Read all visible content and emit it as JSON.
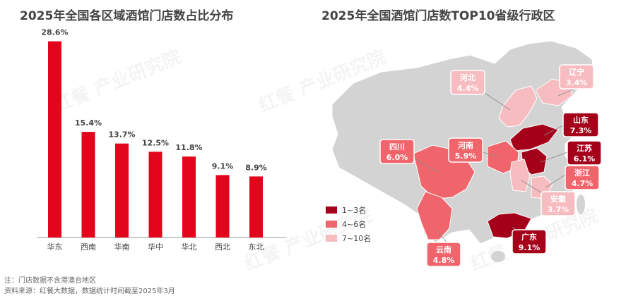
{
  "watermark": "红餐 产业研究院",
  "notes": {
    "line1": "注：门店数据不含港澳台地区",
    "line2": "资料来源：红餐大数据，数据统计时间截至2025年3月"
  },
  "colors": {
    "bar": "#e3051b",
    "dark": "#a5001a",
    "mid": "#f0656b",
    "light": "#f7bcc0",
    "map_base": "#d3d3d3"
  },
  "chart_data": [
    {
      "type": "bar",
      "title": "2025年全国各区域酒馆门店数占比分布",
      "categories": [
        "华东",
        "西南",
        "华南",
        "华中",
        "华北",
        "西北",
        "东北"
      ],
      "values": [
        28.6,
        15.4,
        13.7,
        12.5,
        11.8,
        9.1,
        8.9
      ],
      "value_labels": [
        "28.6%",
        "15.4%",
        "13.7%",
        "12.5%",
        "11.8%",
        "9.1%",
        "8.9%"
      ],
      "ylim": [
        0,
        30
      ],
      "color": "#e3051b"
    },
    {
      "type": "map",
      "title": "2025年全国酒馆门店数TOP10省级行政区",
      "legend": [
        {
          "label": "1~3名",
          "color": "#a5001a"
        },
        {
          "label": "4~6名",
          "color": "#f0656b"
        },
        {
          "label": "7~10名",
          "color": "#f7bcc0"
        }
      ],
      "regions": [
        {
          "name": "山东",
          "value": "7.3%",
          "tier": 1
        },
        {
          "name": "江苏",
          "value": "6.1%",
          "tier": 1
        },
        {
          "name": "广东",
          "value": "9.1%",
          "tier": 1
        },
        {
          "name": "四川",
          "value": "6.0%",
          "tier": 2
        },
        {
          "name": "河南",
          "value": "5.9%",
          "tier": 2
        },
        {
          "name": "云南",
          "value": "4.8%",
          "tier": 2
        },
        {
          "name": "河北",
          "value": "4.4%",
          "tier": 3
        },
        {
          "name": "辽宁",
          "value": "3.4%",
          "tier": 3
        },
        {
          "name": "浙江",
          "value": "4.7%",
          "tier": 3
        },
        {
          "name": "安徽",
          "value": "3.7%",
          "tier": 3
        }
      ]
    }
  ]
}
